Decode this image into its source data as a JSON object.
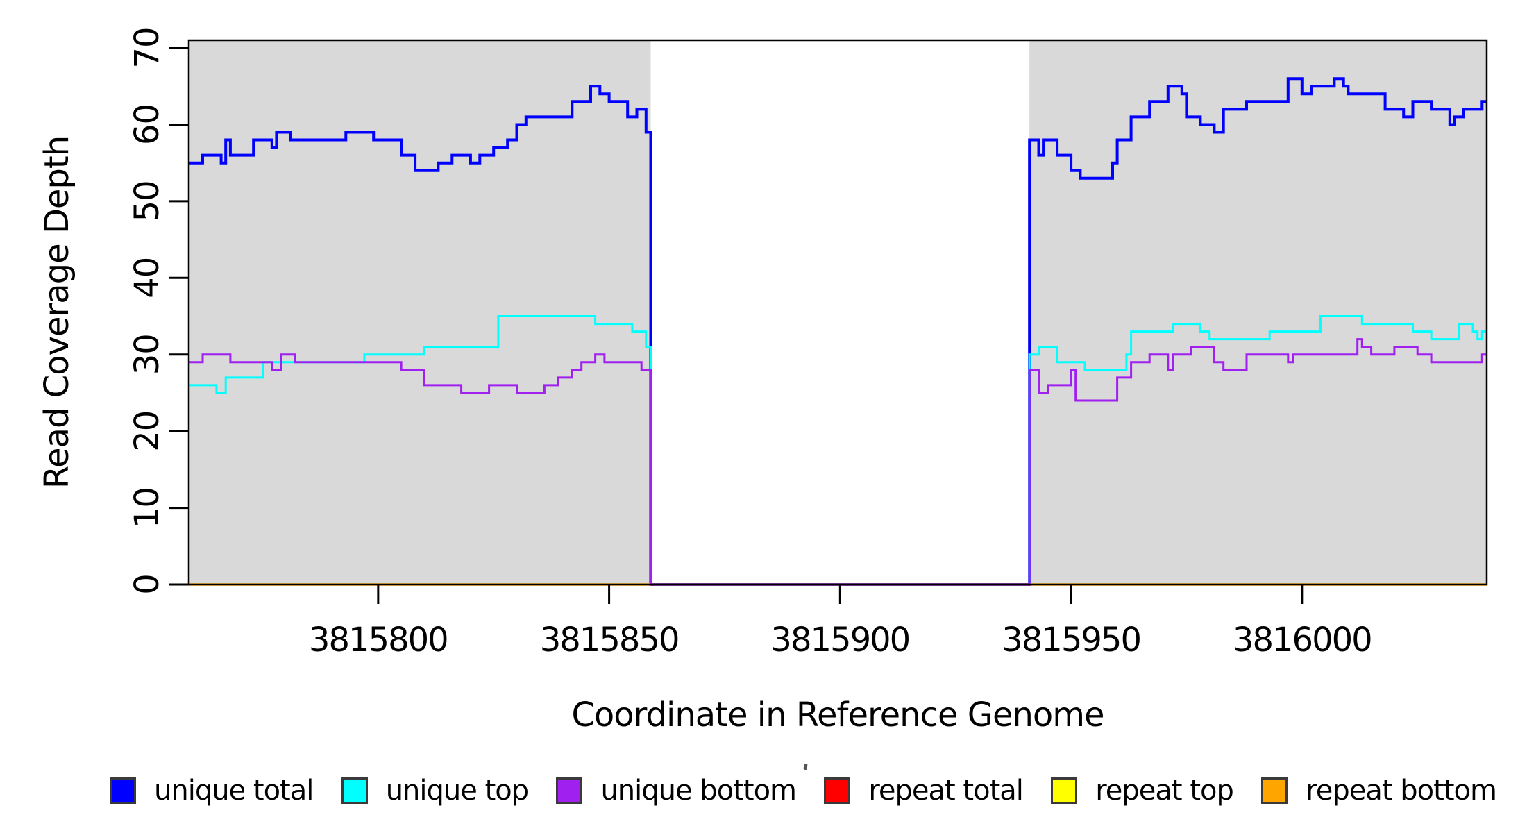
{
  "chart_data": {
    "type": "line",
    "line_style": "step",
    "title": "",
    "xlabel": "Coordinate in Reference Genome",
    "ylabel": "Read Coverage Depth",
    "xlim": [
      3815759,
      3816040
    ],
    "ylim": [
      0,
      71
    ],
    "x_ticks": [
      3815800,
      3815850,
      3815900,
      3815950,
      3816000
    ],
    "y_ticks": [
      0,
      10,
      20,
      30,
      40,
      50,
      60,
      70
    ],
    "grid": false,
    "legend_position": "bottom",
    "background_color": "#ffffff",
    "shaded_region_color": "#d9d9d9",
    "shaded_regions": [
      {
        "x0": 3815759,
        "x1": 3815859
      },
      {
        "x0": 3815941,
        "x1": 3816040
      }
    ],
    "zero_coverage_gap": {
      "x0": 3815859,
      "x1": 3815941
    },
    "draw_order": [
      0,
      1,
      3,
      4,
      5,
      2
    ],
    "series": [
      {
        "name": "unique total",
        "color": "#0000ff",
        "width": 4,
        "points": [
          [
            3815759,
            55
          ],
          [
            3815762,
            56
          ],
          [
            3815766,
            55
          ],
          [
            3815767,
            58
          ],
          [
            3815768,
            56
          ],
          [
            3815773,
            58
          ],
          [
            3815777,
            57
          ],
          [
            3815778,
            59
          ],
          [
            3815781,
            58
          ],
          [
            3815793,
            59
          ],
          [
            3815799,
            58
          ],
          [
            3815805,
            56
          ],
          [
            3815808,
            54
          ],
          [
            3815813,
            55
          ],
          [
            3815816,
            56
          ],
          [
            3815820,
            55
          ],
          [
            3815822,
            56
          ],
          [
            3815825,
            57
          ],
          [
            3815828,
            58
          ],
          [
            3815830,
            60
          ],
          [
            3815832,
            61
          ],
          [
            3815842,
            63
          ],
          [
            3815846,
            65
          ],
          [
            3815848,
            64
          ],
          [
            3815850,
            63
          ],
          [
            3815854,
            61
          ],
          [
            3815856,
            62
          ],
          [
            3815858,
            59
          ],
          [
            3815859,
            0
          ],
          [
            3815941,
            58
          ],
          [
            3815943,
            56
          ],
          [
            3815944,
            58
          ],
          [
            3815947,
            56
          ],
          [
            3815950,
            54
          ],
          [
            3815952,
            53
          ],
          [
            3815959,
            55
          ],
          [
            3815960,
            58
          ],
          [
            3815963,
            61
          ],
          [
            3815967,
            63
          ],
          [
            3815971,
            65
          ],
          [
            3815974,
            64
          ],
          [
            3815975,
            61
          ],
          [
            3815978,
            60
          ],
          [
            3815981,
            59
          ],
          [
            3815983,
            62
          ],
          [
            3815988,
            63
          ],
          [
            3815997,
            66
          ],
          [
            3816000,
            64
          ],
          [
            3816002,
            65
          ],
          [
            3816007,
            66
          ],
          [
            3816009,
            65
          ],
          [
            3816010,
            64
          ],
          [
            3816018,
            62
          ],
          [
            3816022,
            61
          ],
          [
            3816024,
            63
          ],
          [
            3816028,
            62
          ],
          [
            3816032,
            60
          ],
          [
            3816033,
            61
          ],
          [
            3816035,
            62
          ],
          [
            3816039,
            63
          ]
        ]
      },
      {
        "name": "unique top",
        "color": "#00ffff",
        "width": 3,
        "points": [
          [
            3815759,
            26
          ],
          [
            3815765,
            25
          ],
          [
            3815767,
            27
          ],
          [
            3815775,
            29
          ],
          [
            3815797,
            30
          ],
          [
            3815810,
            31
          ],
          [
            3815826,
            35
          ],
          [
            3815847,
            34
          ],
          [
            3815855,
            33
          ],
          [
            3815858,
            31
          ],
          [
            3815859,
            0
          ],
          [
            3815941,
            30
          ],
          [
            3815943,
            31
          ],
          [
            3815947,
            29
          ],
          [
            3815953,
            28
          ],
          [
            3815962,
            30
          ],
          [
            3815963,
            33
          ],
          [
            3815972,
            34
          ],
          [
            3815978,
            33
          ],
          [
            3815980,
            32
          ],
          [
            3815993,
            33
          ],
          [
            3816004,
            35
          ],
          [
            3816013,
            34
          ],
          [
            3816024,
            33
          ],
          [
            3816028,
            32
          ],
          [
            3816034,
            34
          ],
          [
            3816037,
            33
          ],
          [
            3816038,
            32
          ],
          [
            3816039,
            33
          ]
        ]
      },
      {
        "name": "unique bottom",
        "color": "#a020f0",
        "width": 3,
        "points": [
          [
            3815759,
            29
          ],
          [
            3815762,
            30
          ],
          [
            3815768,
            29
          ],
          [
            3815777,
            28
          ],
          [
            3815779,
            30
          ],
          [
            3815782,
            29
          ],
          [
            3815805,
            28
          ],
          [
            3815810,
            26
          ],
          [
            3815818,
            25
          ],
          [
            3815824,
            26
          ],
          [
            3815830,
            25
          ],
          [
            3815836,
            26
          ],
          [
            3815839,
            27
          ],
          [
            3815842,
            28
          ],
          [
            3815844,
            29
          ],
          [
            3815847,
            30
          ],
          [
            3815849,
            29
          ],
          [
            3815857,
            28
          ],
          [
            3815859,
            0
          ],
          [
            3815941,
            28
          ],
          [
            3815943,
            25
          ],
          [
            3815945,
            26
          ],
          [
            3815950,
            28
          ],
          [
            3815951,
            24
          ],
          [
            3815960,
            27
          ],
          [
            3815963,
            29
          ],
          [
            3815967,
            30
          ],
          [
            3815971,
            28
          ],
          [
            3815972,
            30
          ],
          [
            3815976,
            31
          ],
          [
            3815981,
            29
          ],
          [
            3815983,
            28
          ],
          [
            3815988,
            30
          ],
          [
            3815997,
            29
          ],
          [
            3815998,
            30
          ],
          [
            3816012,
            32
          ],
          [
            3816013,
            31
          ],
          [
            3816015,
            30
          ],
          [
            3816020,
            31
          ],
          [
            3816025,
            30
          ],
          [
            3816028,
            29
          ],
          [
            3816039,
            30
          ]
        ]
      },
      {
        "name": "repeat total",
        "color": "#ff0000",
        "width": 3,
        "points": [
          [
            3815759,
            0
          ]
        ]
      },
      {
        "name": "repeat top",
        "color": "#ffff00",
        "width": 3,
        "points": [
          [
            3815759,
            0
          ]
        ]
      },
      {
        "name": "repeat bottom",
        "color": "#ffa500",
        "width": 3.5,
        "points": [
          [
            3815759,
            0
          ]
        ]
      }
    ]
  },
  "legend": {
    "items": [
      {
        "label": "unique total",
        "color": "#0000ff"
      },
      {
        "label": "unique top",
        "color": "#00ffff"
      },
      {
        "label": "unique bottom",
        "color": "#a020f0"
      },
      {
        "label": "repeat total",
        "color": "#ff0000"
      },
      {
        "label": "repeat top",
        "color": "#ffff00"
      },
      {
        "label": "repeat bottom",
        "color": "#ffa500"
      }
    ]
  },
  "artifacts": {
    "stray_mark": "'"
  }
}
